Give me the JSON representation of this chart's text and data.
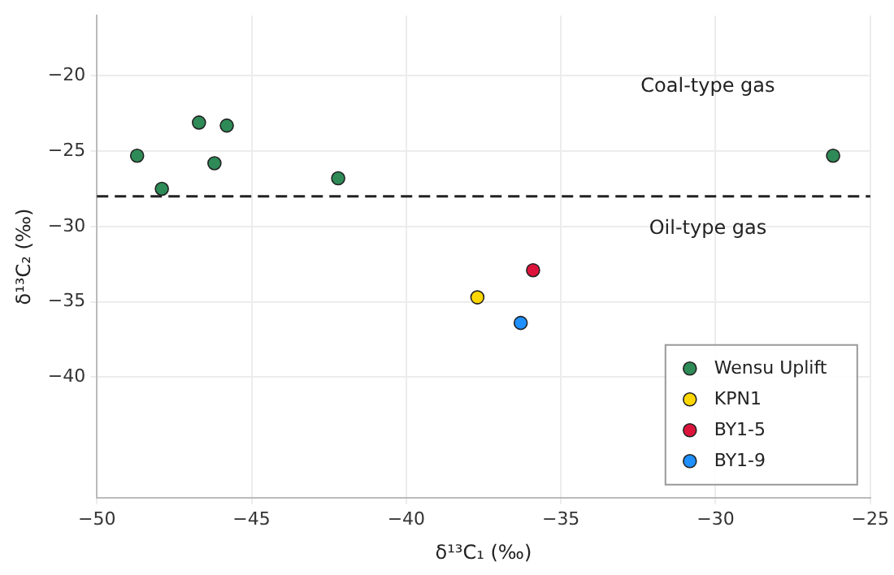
{
  "chart_data": {
    "type": "scatter",
    "xlabel": "δ¹³C₁ (‰)",
    "ylabel": "δ¹³C₂ (‰)",
    "series": [
      {
        "name": "Wensu Uplift",
        "color": "#2e8b57",
        "x": [
          -48.7,
          -47.9,
          -46.7,
          -46.2,
          -45.8,
          -42.2,
          -26.2
        ],
        "values": [
          -25.3,
          -27.5,
          -23.1,
          -25.8,
          -23.3,
          -26.8,
          -25.3
        ]
      },
      {
        "name": "KPN1",
        "color": "#ffd700",
        "x": [
          -37.7
        ],
        "values": [
          -34.7
        ]
      },
      {
        "name": "BY1-5",
        "color": "#dc143c",
        "x": [
          -35.9
        ],
        "values": [
          -32.9
        ]
      },
      {
        "name": "BY1-9",
        "color": "#1e90ff",
        "x": [
          -36.3
        ],
        "values": [
          -36.4
        ]
      }
    ],
    "xlim": [
      -50,
      -25
    ],
    "xticks": [
      -50,
      -45,
      -40,
      -35,
      -30,
      -25
    ],
    "ylim": [
      -48,
      -16
    ],
    "yticks": [
      -40,
      -35,
      -30,
      -25,
      -20
    ],
    "ref_lines": [
      {
        "axis": "y",
        "value": -28,
        "color": "#222222",
        "line_style": "dashed"
      }
    ],
    "annotations": [
      "Coal-type gas",
      "Oil-type gas"
    ],
    "grid": true,
    "legend": "bottom right",
    "marker": "circle"
  }
}
